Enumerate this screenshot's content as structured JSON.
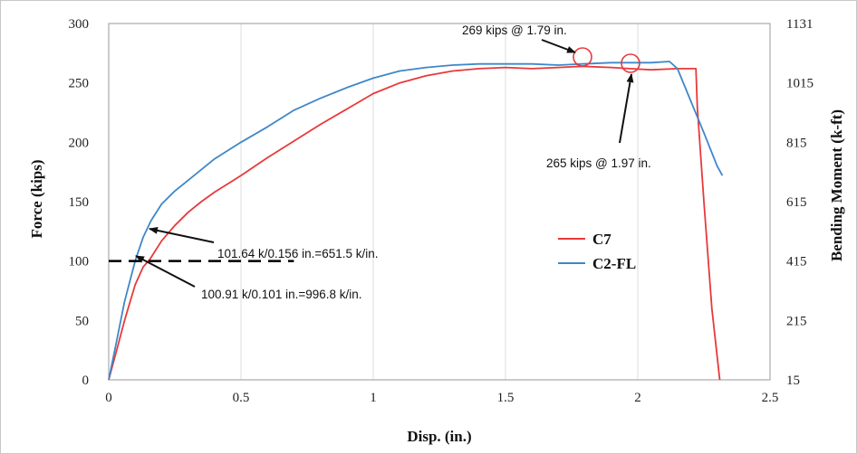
{
  "chart_data": {
    "type": "line",
    "title": "",
    "xlabel": "Disp. (in.)",
    "ylabel": "Force (kips)",
    "y2label": "Bending Moment (k-ft)",
    "xlim": [
      0,
      2.5
    ],
    "ylim": [
      0,
      300
    ],
    "x_ticks": [
      "0",
      "0.5",
      "1",
      "1.5",
      "2",
      "2.5"
    ],
    "y_ticks": [
      "0",
      "50",
      "100",
      "150",
      "200",
      "250",
      "300"
    ],
    "y2_ticks": [
      "15",
      "215",
      "415",
      "615",
      "815",
      "1015",
      "1131"
    ],
    "grid": "vertical",
    "legend_position": "center-right",
    "series": [
      {
        "name": "C7",
        "color": "#e8393a",
        "x": [
          0,
          0.03,
          0.06,
          0.1,
          0.13,
          0.156,
          0.2,
          0.25,
          0.3,
          0.35,
          0.4,
          0.5,
          0.6,
          0.7,
          0.8,
          0.9,
          1.0,
          1.1,
          1.2,
          1.3,
          1.4,
          1.5,
          1.6,
          1.7,
          1.79,
          1.9,
          1.97,
          2.05,
          2.15,
          2.22,
          2.225,
          2.25,
          2.28,
          2.31
        ],
        "values": [
          0,
          25,
          50,
          80,
          95,
          101.64,
          117,
          130,
          141,
          150,
          158,
          172,
          187,
          201,
          215,
          228,
          241,
          250,
          256,
          260,
          262,
          263,
          262,
          263,
          264,
          263,
          262,
          261,
          262,
          262,
          230,
          150,
          60,
          0
        ]
      },
      {
        "name": "C2-FL",
        "color": "#3f87c8",
        "x": [
          0,
          0.03,
          0.06,
          0.101,
          0.13,
          0.16,
          0.2,
          0.25,
          0.3,
          0.4,
          0.5,
          0.6,
          0.7,
          0.8,
          0.9,
          1.0,
          1.1,
          1.2,
          1.3,
          1.4,
          1.5,
          1.6,
          1.7,
          1.79,
          1.9,
          2.0,
          2.05,
          2.12,
          2.15,
          2.2,
          2.25,
          2.3,
          2.32
        ],
        "values": [
          0,
          33,
          66,
          100.91,
          120,
          134,
          148,
          159,
          168,
          186,
          200,
          213,
          227,
          237,
          246,
          254,
          260,
          263,
          265,
          266,
          266,
          266,
          265,
          266,
          267,
          267,
          267,
          268,
          262,
          235,
          208,
          180,
          172
        ]
      }
    ],
    "reference_line": {
      "y": 100,
      "x_start": 0,
      "x_end": 0.7,
      "style": "dashed",
      "color": "#000000"
    },
    "annotations": [
      {
        "text": "269 kips @ 1.79 in.",
        "x": 1.79,
        "y": 269,
        "marker": "circle"
      },
      {
        "text": "265 kips @ 1.97 in.",
        "x": 1.97,
        "y": 265,
        "marker": "circle"
      },
      {
        "text": "101.64 k/0.156 in.=651.5 k/in.",
        "x": 0.156,
        "y": 101.64
      },
      {
        "text": "100.91 k/0.101 in.=996.8 k/in.",
        "x": 0.101,
        "y": 100.91
      }
    ]
  }
}
